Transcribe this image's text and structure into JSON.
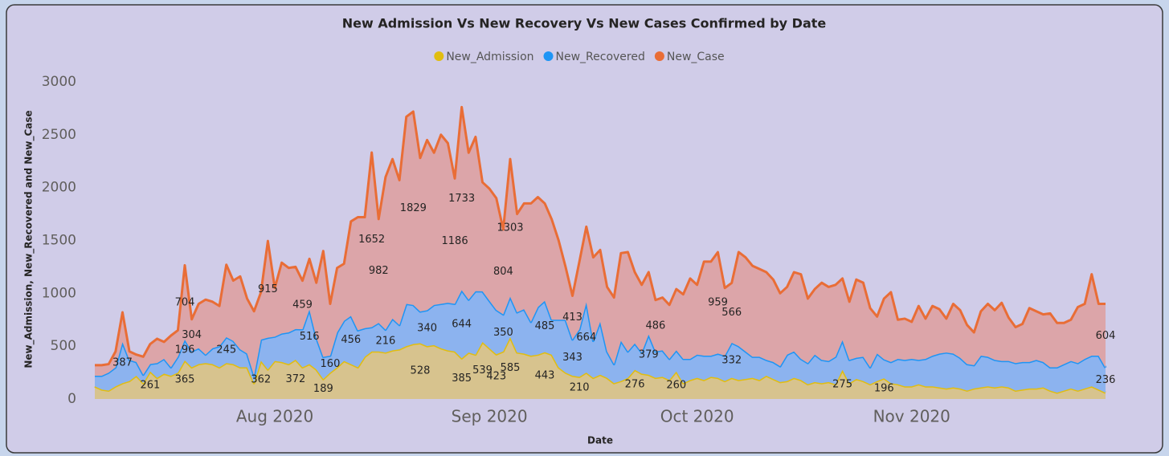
{
  "chart_data": {
    "type": "stacked_area",
    "title": "New Admission Vs New Recovery Vs New Cases Confirmed by Date",
    "x_label": "Date",
    "y_label": "New_Admission, New_Recovered and New_Case",
    "ylim": [
      0,
      3000
    ],
    "yticks": [
      0,
      500,
      1000,
      1500,
      2000,
      2500,
      3000
    ],
    "grid": false,
    "legend": "top",
    "categories": [
      null,
      null,
      null,
      null,
      null,
      null,
      null,
      null,
      null,
      null,
      null,
      null,
      null,
      null,
      null,
      null,
      null,
      null,
      null,
      null,
      null,
      null,
      null,
      null,
      null,
      null,
      "Aug 2020",
      null,
      null,
      null,
      null,
      null,
      null,
      null,
      null,
      null,
      null,
      null,
      null,
      null,
      null,
      null,
      null,
      null,
      null,
      null,
      null,
      null,
      null,
      null,
      null,
      null,
      null,
      null,
      null,
      null,
      null,
      "Sep 2020",
      null,
      null,
      null,
      null,
      null,
      null,
      null,
      null,
      null,
      null,
      null,
      null,
      null,
      null,
      null,
      null,
      null,
      null,
      null,
      null,
      null,
      null,
      null,
      null,
      null,
      null,
      null,
      null,
      null,
      "Oct 2020",
      null,
      null,
      null,
      null,
      null,
      null,
      null,
      null,
      null,
      null,
      null,
      null,
      null,
      null,
      null,
      null,
      null,
      null,
      null,
      null,
      null,
      null,
      null,
      null,
      null,
      null,
      null,
      null,
      null,
      null,
      "Nov 2020",
      null,
      null,
      null,
      null,
      null,
      null,
      null,
      null,
      null,
      null,
      null,
      null,
      null,
      null,
      null,
      null,
      null,
      null,
      null,
      null,
      null,
      null,
      null,
      null,
      null,
      null,
      null,
      null
    ],
    "series": [
      {
        "name": "New_Admission",
        "color": "#e1bd0f",
        "fill": "#d7c38e",
        "values": [
          120,
          90,
          80,
          120,
          150,
          170,
          220,
          150,
          261,
          200,
          240,
          220,
          250,
          365,
          300,
          330,
          340,
          330,
          300,
          340,
          330,
          300,
          300,
          150,
          362,
          280,
          360,
          350,
          330,
          372,
          300,
          330,
          280,
          189,
          250,
          300,
          360,
          330,
          300,
          400,
          450,
          450,
          440,
          460,
          470,
          500,
          520,
          528,
          500,
          510,
          480,
          460,
          450,
          385,
          440,
          420,
          539,
          480,
          423,
          450,
          585,
          440,
          430,
          410,
          420,
          443,
          420,
          300,
          250,
          220,
          210,
          250,
          200,
          230,
          200,
          150,
          170,
          200,
          276,
          240,
          230,
          200,
          210,
          180,
          260,
          150,
          180,
          200,
          180,
          210,
          200,
          170,
          200,
          180,
          190,
          200,
          180,
          220,
          190,
          160,
          170,
          200,
          180,
          140,
          160,
          150,
          160,
          140,
          275,
          150,
          190,
          170,
          140,
          170,
          196,
          150,
          140,
          120,
          120,
          140,
          120,
          120,
          110,
          100,
          110,
          100,
          80,
          100,
          110,
          120,
          110,
          120,
          110,
          80,
          90,
          100,
          100,
          110,
          80,
          60,
          80,
          100,
          80,
          100,
          120,
          90,
          60
        ],
        "value_labels": [
          null,
          null,
          null,
          null,
          null,
          null,
          null,
          null,
          "261",
          null,
          null,
          null,
          null,
          "365",
          null,
          null,
          null,
          null,
          null,
          null,
          null,
          null,
          null,
          null,
          "362",
          null,
          null,
          null,
          null,
          "372",
          null,
          null,
          null,
          "189",
          null,
          null,
          null,
          null,
          null,
          null,
          null,
          null,
          null,
          null,
          null,
          null,
          null,
          "528",
          null,
          null,
          null,
          null,
          null,
          "385",
          null,
          null,
          "539",
          null,
          "423",
          null,
          "585",
          null,
          null,
          null,
          null,
          "443",
          null,
          null,
          null,
          null,
          "210",
          null,
          null,
          null,
          null,
          null,
          null,
          null,
          "276",
          null,
          null,
          null,
          null,
          null,
          "260",
          null,
          null,
          null,
          null,
          null,
          null,
          null,
          null,
          null,
          null,
          null,
          null,
          null,
          null,
          null,
          null,
          null,
          null,
          null,
          null,
          null,
          null,
          null,
          "275",
          null,
          null,
          null,
          null,
          null,
          "196",
          null,
          null,
          null,
          null,
          null,
          null,
          null,
          null,
          null,
          null,
          null,
          null,
          null,
          null,
          null,
          null,
          null,
          null,
          null,
          null,
          null,
          null,
          null,
          null,
          null,
          null,
          null,
          null,
          null,
          null,
          null,
          null
        ]
      },
      {
        "name": "New_Recovered",
        "color": "#1e95f5",
        "fill": "#8cb3ef",
        "values": [
          100,
          130,
          170,
          180,
          387,
          200,
          130,
          80,
          70,
          140,
          140,
          80,
          150,
          196,
          150,
          150,
          80,
          150,
          200,
          245,
          220,
          170,
          130,
          70,
          200,
          300,
          230,
          270,
          300,
          290,
          360,
          516,
          300,
          210,
          160,
          330,
          380,
          456,
          350,
          270,
          230,
          270,
          216,
          300,
          230,
          400,
          370,
          300,
          340,
          380,
          420,
          450,
          450,
          644,
          500,
          600,
          480,
          450,
          420,
          350,
          382,
          380,
          420,
          320,
          450,
          485,
          330,
          450,
          500,
          343,
          450,
          664,
          350,
          500,
          250,
          180,
          380,
          250,
          250,
          200,
          379,
          250,
          250,
          200,
          200,
          230,
          200,
          220,
          230,
          200,
          230,
          240,
          332,
          320,
          260,
          200,
          220,
          150,
          160,
          150,
          250,
          250,
          200,
          200,
          260,
          220,
          200,
          260,
          280,
          220,
          200,
          230,
          160,
          260,
          180,
          200,
          240,
          250,
          260,
          230,
          260,
          290,
          320,
          340,
          320,
          290,
          250,
          220,
          300,
          280,
          260,
          240,
          250,
          260,
          260,
          250,
          270,
          240,
          220,
          240,
          250,
          260,
          260,
          280,
          290,
          320,
          236
        ],
        "value_labels": [
          null,
          null,
          null,
          null,
          "387",
          null,
          null,
          null,
          null,
          null,
          null,
          null,
          null,
          "196",
          null,
          null,
          null,
          null,
          null,
          "245",
          null,
          null,
          null,
          null,
          null,
          null,
          null,
          null,
          null,
          null,
          null,
          "516",
          null,
          null,
          "160",
          null,
          null,
          "456",
          null,
          null,
          null,
          null,
          "216",
          null,
          null,
          null,
          null,
          null,
          "340",
          null,
          null,
          null,
          null,
          "644",
          null,
          null,
          null,
          null,
          null,
          "350",
          null,
          null,
          null,
          null,
          null,
          "485",
          null,
          null,
          null,
          "343",
          null,
          "664",
          null,
          null,
          null,
          null,
          null,
          null,
          null,
          null,
          "379",
          null,
          null,
          null,
          null,
          null,
          null,
          null,
          null,
          null,
          null,
          null,
          "332",
          null,
          null,
          null,
          null,
          null,
          null,
          null,
          null,
          null,
          null,
          null,
          null,
          null,
          null,
          null,
          null,
          null,
          null,
          null,
          null,
          null,
          null,
          null,
          null,
          null,
          null,
          null,
          null,
          null,
          null,
          null,
          null,
          null,
          null,
          null,
          null,
          null,
          null,
          null,
          null,
          null,
          null,
          null,
          null,
          null,
          null,
          null,
          null,
          null,
          null,
          null,
          null,
          null,
          "236"
        ]
      },
      {
        "name": "New_Case",
        "color": "#e96d36",
        "fill": "#dca5a9",
        "values": [
          100,
          100,
          80,
          150,
          283,
          80,
          70,
          170,
          189,
          230,
          160,
          300,
          250,
          704,
          304,
          420,
          520,
          440,
          380,
          685,
          570,
          690,
          520,
          610,
          448,
          915,
          460,
          670,
          610,
          588,
          459,
          480,
          520,
          1001,
          490,
          610,
          540,
          894,
          1070,
          1050,
          1652,
          982,
          1444,
          1510,
          1370,
          1770,
          1829,
          1452,
          1610,
          1440,
          1600,
          1510,
          1186,
          1733,
          1390,
          1460,
          1031,
          1060,
          1057,
          804,
          1303,
          930,
          1000,
          1120,
          1040,
          922,
          950,
          750,
          500,
          413,
          640,
          716,
          790,
          680,
          610,
          630,
          830,
          940,
          674,
          640,
          591,
          486,
          500,
          510,
          580,
          610,
          760,
          660,
          890,
          890,
          959,
          640,
          566,
          890,
          890,
          860,
          830,
          830,
          780,
          690,
          640,
          750,
          800,
          610,
          620,
          730,
          700,
          680,
          585,
          550,
          740,
          700,
          560,
          350,
          574,
          660,
          370,
          390,
          350,
          510,
          380,
          470,
          420,
          320,
          470,
          450,
          370,
          310,
          420,
          500,
          470,
          550,
          410,
          340,
          360,
          510,
          460,
          450,
          510,
          420,
          390,
          390,
          530,
          520,
          770,
          490,
          604
        ],
        "value_labels": [
          null,
          null,
          null,
          null,
          null,
          null,
          null,
          null,
          null,
          null,
          null,
          null,
          null,
          "704",
          "304",
          null,
          null,
          null,
          null,
          null,
          null,
          null,
          null,
          null,
          null,
          "915",
          null,
          null,
          null,
          null,
          "459",
          null,
          null,
          null,
          null,
          null,
          null,
          null,
          null,
          null,
          "1652",
          "982",
          null,
          null,
          null,
          null,
          "1829",
          null,
          null,
          null,
          null,
          null,
          "1186",
          "1733",
          null,
          null,
          null,
          null,
          null,
          "804",
          "1303",
          null,
          null,
          null,
          null,
          null,
          null,
          null,
          null,
          "413",
          null,
          null,
          null,
          null,
          null,
          null,
          null,
          null,
          null,
          null,
          null,
          "486",
          null,
          null,
          null,
          null,
          null,
          null,
          null,
          null,
          "959",
          null,
          "566",
          null,
          null,
          null,
          null,
          null,
          null,
          null,
          null,
          null,
          null,
          null,
          null,
          null,
          null,
          null,
          null,
          null,
          null,
          null,
          null,
          null,
          null,
          null,
          null,
          null,
          null,
          null,
          null,
          null,
          null,
          null,
          null,
          null,
          null,
          null,
          null,
          null,
          null,
          null,
          null,
          null,
          null,
          null,
          null,
          null,
          null,
          null,
          null,
          null,
          null,
          null,
          null,
          null,
          "604"
        ]
      }
    ]
  }
}
